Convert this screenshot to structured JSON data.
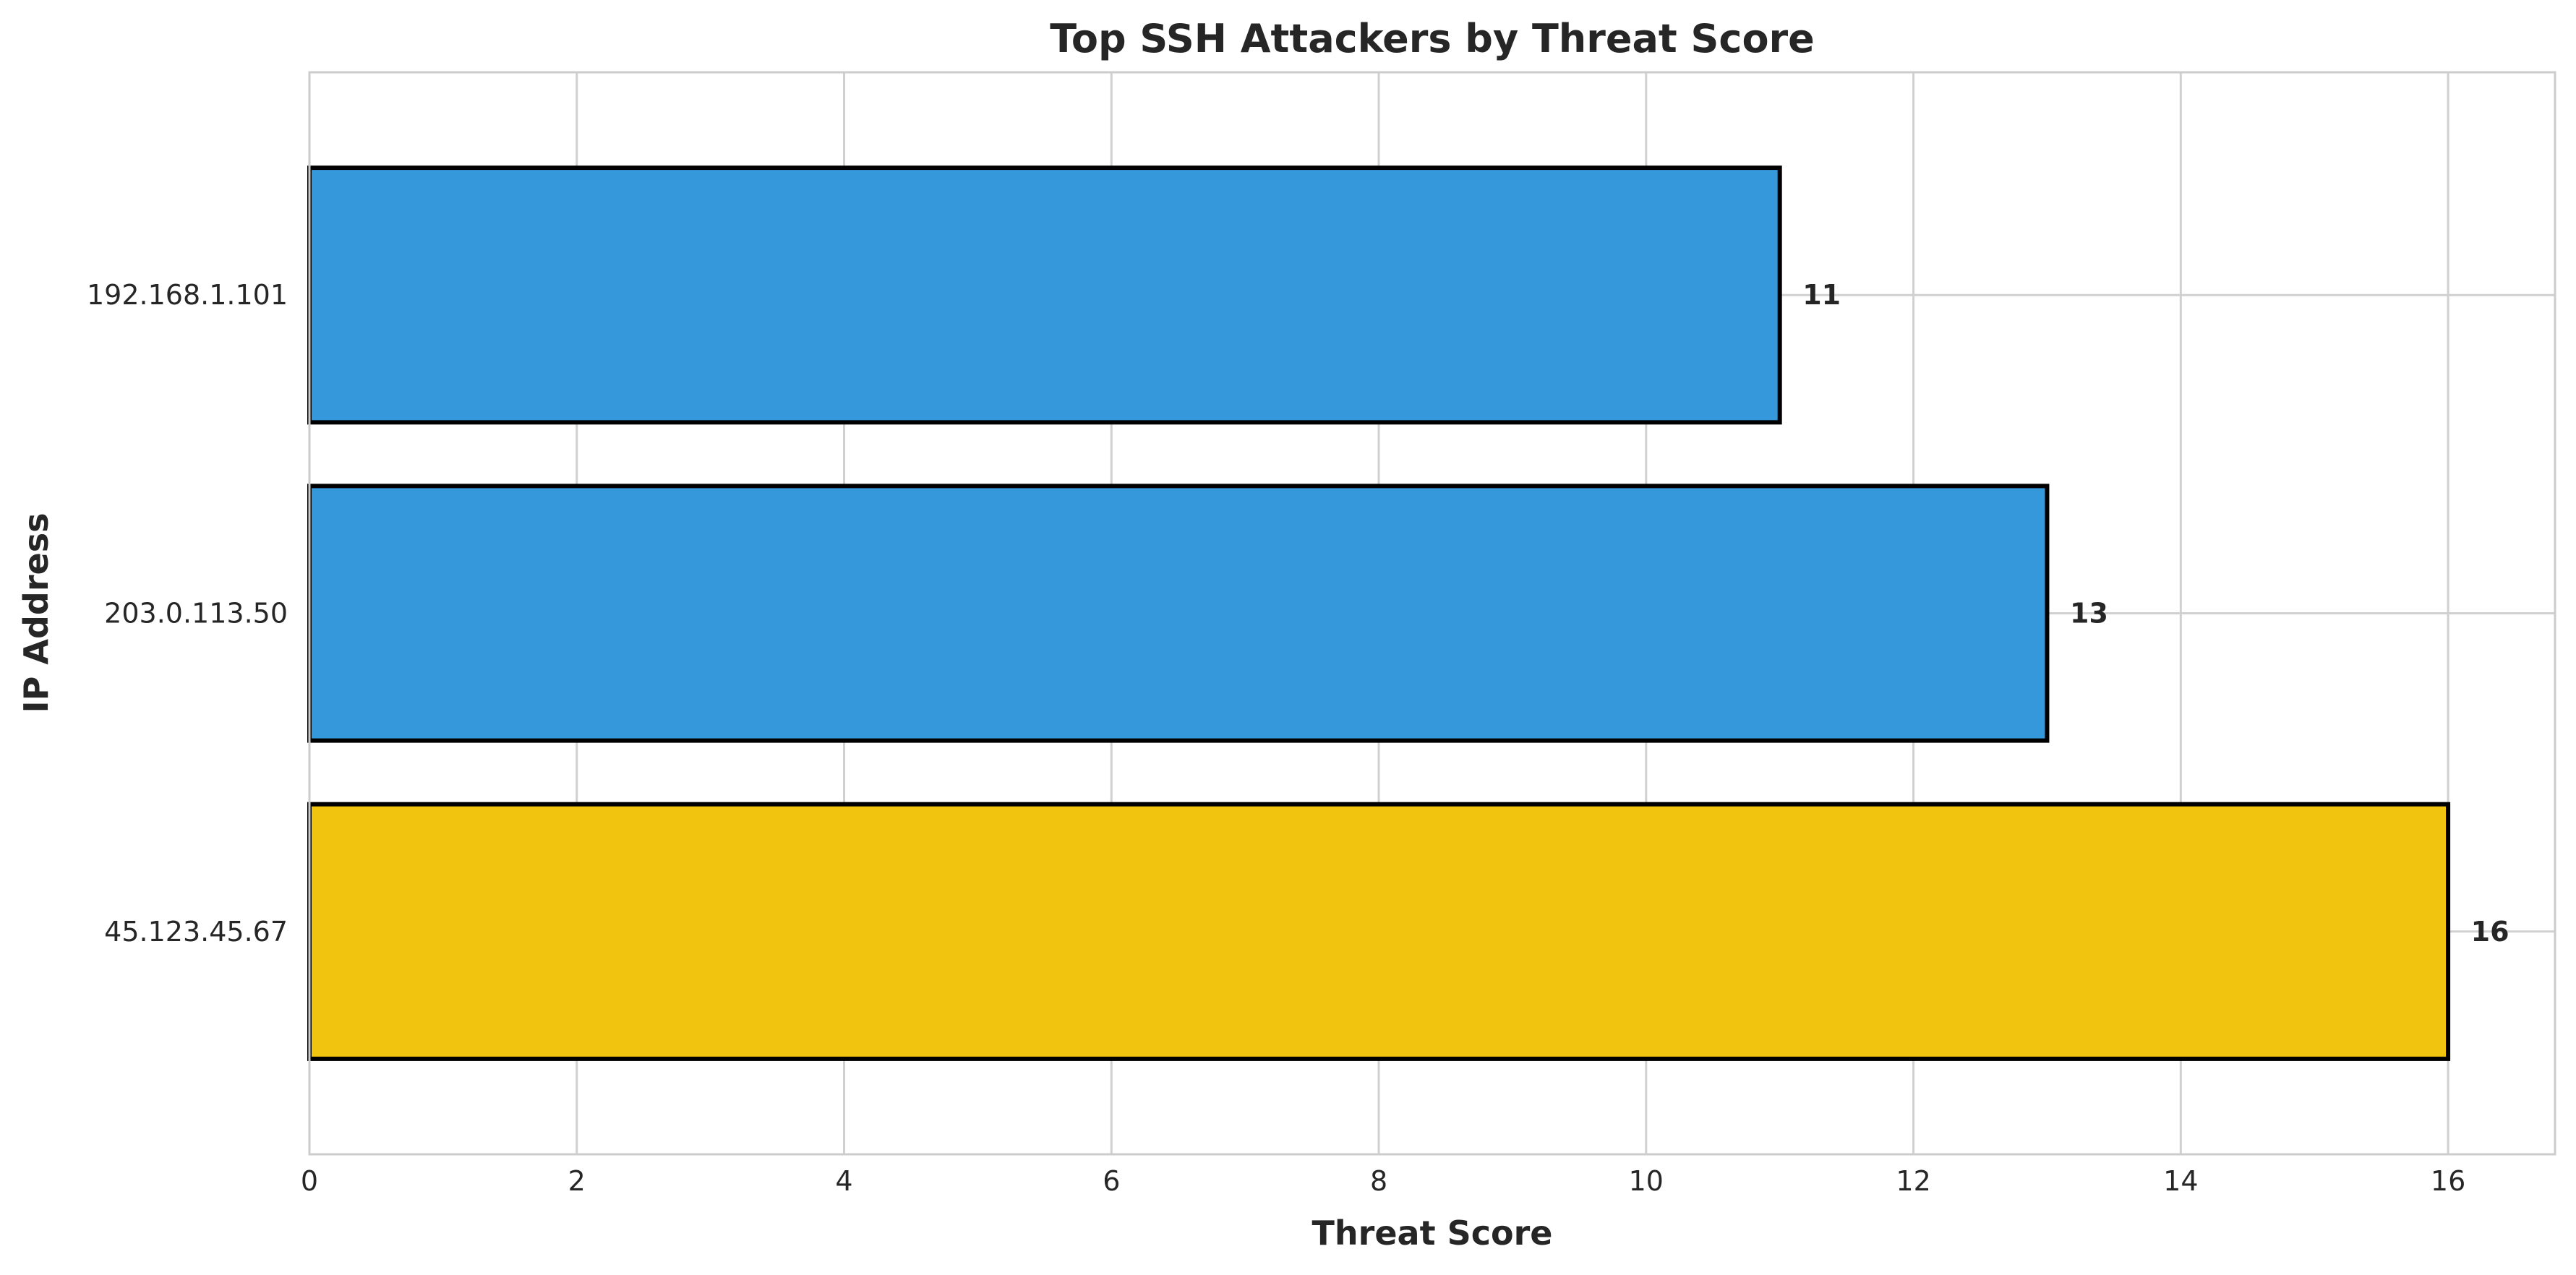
{
  "chart_data": {
    "type": "bar",
    "orientation": "horizontal",
    "title": "Top SSH Attackers by Threat Score",
    "xlabel": "Threat Score",
    "ylabel": "IP Address",
    "categories": [
      "192.168.1.101",
      "203.0.113.50",
      "45.123.45.67"
    ],
    "values": [
      11,
      13,
      16
    ],
    "value_labels": [
      "11",
      "13",
      "16"
    ],
    "bar_colors": [
      "#3498db",
      "#3498db",
      "#f1c40f"
    ],
    "edge_color": "#000000",
    "xlim": [
      0,
      16.8
    ],
    "xticks": [
      0,
      2,
      4,
      6,
      8,
      10,
      12,
      14,
      16
    ],
    "xtick_labels": [
      "0",
      "2",
      "4",
      "6",
      "8",
      "10",
      "12",
      "14",
      "16"
    ],
    "grid": true,
    "legend": "none"
  }
}
